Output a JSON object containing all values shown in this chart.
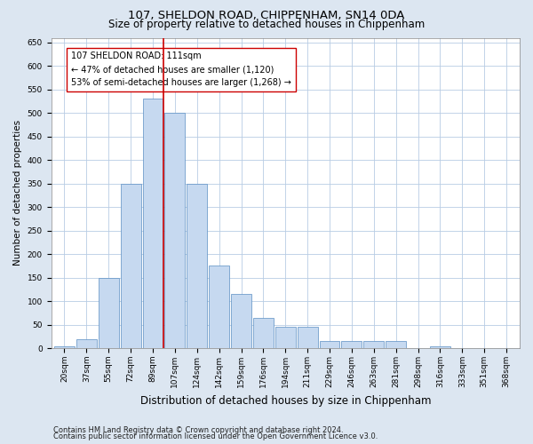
{
  "title": "107, SHELDON ROAD, CHIPPENHAM, SN14 0DA",
  "subtitle": "Size of property relative to detached houses in Chippenham",
  "xlabel": "Distribution of detached houses by size in Chippenham",
  "ylabel": "Number of detached properties",
  "bin_labels": [
    "20sqm",
    "37sqm",
    "55sqm",
    "72sqm",
    "89sqm",
    "107sqm",
    "124sqm",
    "142sqm",
    "159sqm",
    "176sqm",
    "194sqm",
    "211sqm",
    "229sqm",
    "246sqm",
    "263sqm",
    "281sqm",
    "298sqm",
    "316sqm",
    "333sqm",
    "351sqm",
    "368sqm"
  ],
  "bar_heights": [
    5,
    20,
    150,
    350,
    530,
    500,
    350,
    175,
    115,
    65,
    45,
    45,
    15,
    15,
    15,
    15,
    0,
    5,
    0,
    0,
    0
  ],
  "bar_color": "#c6d9f0",
  "bar_edge_color": "#5a8fc3",
  "red_line_x": 5.0,
  "red_line_color": "#cc0000",
  "annotation_text": "107 SHELDON ROAD: 111sqm\n← 47% of detached houses are smaller (1,120)\n53% of semi-detached houses are larger (1,268) →",
  "annotation_box_color": "#ffffff",
  "annotation_box_edge": "#cc0000",
  "ylim": [
    0,
    660
  ],
  "yticks": [
    0,
    50,
    100,
    150,
    200,
    250,
    300,
    350,
    400,
    450,
    500,
    550,
    600,
    650
  ],
  "footnote1": "Contains HM Land Registry data © Crown copyright and database right 2024.",
  "footnote2": "Contains public sector information licensed under the Open Government Licence v3.0.",
  "background_color": "#dce6f1",
  "plot_background": "#ffffff",
  "title_fontsize": 9.5,
  "subtitle_fontsize": 8.5,
  "xlabel_fontsize": 8.5,
  "ylabel_fontsize": 7.5,
  "tick_fontsize": 6.5,
  "annotation_fontsize": 7,
  "footnote_fontsize": 6
}
